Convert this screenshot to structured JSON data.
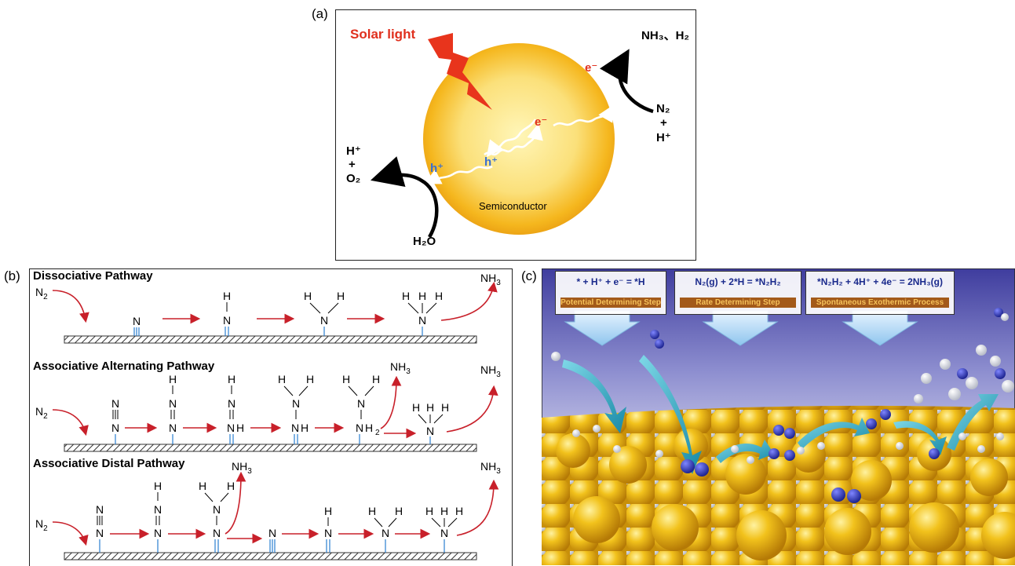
{
  "panel_a": {
    "label": "(a)",
    "light": "Solar light",
    "product_top": "NH₃、H₂",
    "reactant_right_1": "N₂",
    "plus_right": "+",
    "reactant_right_2": "H⁺",
    "product_left_1": "H⁺",
    "plus_left": "+",
    "product_left_2": "O₂",
    "water": "H₂O",
    "electron": "e⁻",
    "hole": "h⁺",
    "material": "Semiconductor"
  },
  "panel_b": {
    "label": "(b)",
    "dissociative": "Dissociative Pathway",
    "alternating": "Associative Alternating Pathway",
    "distal": "Associative Distal Pathway",
    "n2": "N",
    "nh3": "NH",
    "sub3": "3",
    "sub2": "2"
  },
  "panel_c": {
    "label": "(c)",
    "steps": [
      {
        "equation": "* + H⁺ + e⁻ = *H",
        "note": "Potential Determining Step"
      },
      {
        "equation": "N₂(g) + 2*H = *N₂H₂",
        "note": "Rate Determining Step"
      },
      {
        "equation": "*N₂H₂ + 4H⁺ + 4e⁻ = 2NH₃(g)",
        "note": "Spontaneous Exothermic Process"
      }
    ]
  },
  "colors": {
    "red_arrow": "#c8202a",
    "bond_blue": "#2a7fd0",
    "sun_yellow": "#f7c218",
    "electron_red": "#e0301e",
    "hole_blue": "#3a6fd0",
    "surface_gold": "#e7a814"
  }
}
